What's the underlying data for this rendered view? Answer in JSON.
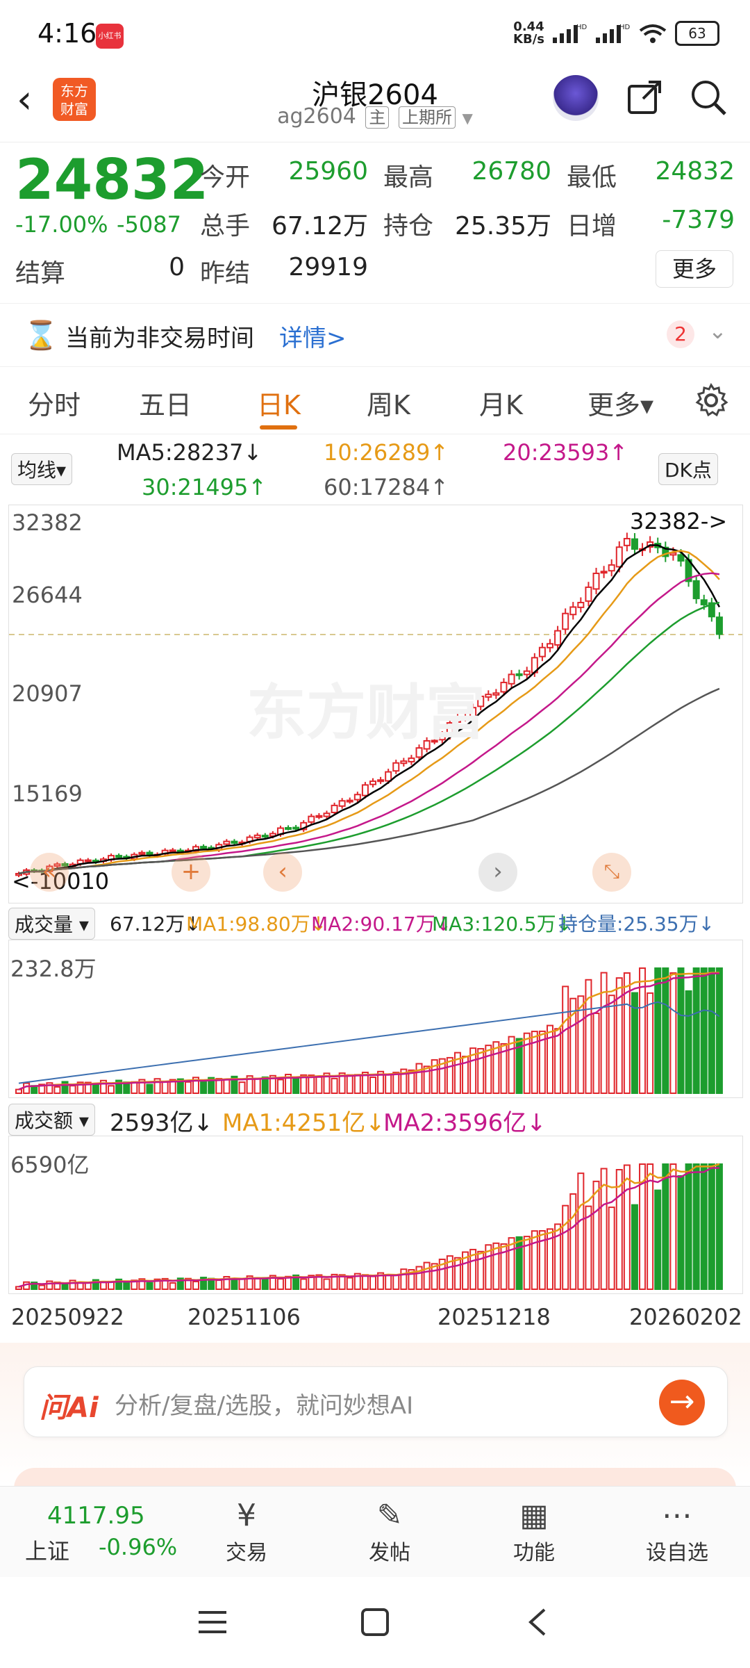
{
  "status_bar": {
    "time": "4:16",
    "app_badge": "小红书",
    "net_speed_top": "0.44",
    "net_speed_unit": "KB/s",
    "battery": "63"
  },
  "header": {
    "title": "沪银2604",
    "code": "ag2604",
    "tag_main": "主",
    "tag_exchange": "上期所",
    "logo_line1": "东方",
    "logo_line2": "财富"
  },
  "quote": {
    "price": "24832",
    "change_pct": "-17.00%",
    "change": "-5087",
    "rows": [
      [
        {
          "label": "今开",
          "value": "25960",
          "color": "#1d9d2e"
        },
        {
          "label": "最高",
          "value": "26780",
          "color": "#1d9d2e"
        },
        {
          "label": "最低",
          "value": "24832",
          "color": "#1d9d2e"
        }
      ],
      [
        {
          "label": "总手",
          "value": "67.12万",
          "color": "#222222"
        },
        {
          "label": "持仓",
          "value": "25.35万",
          "color": "#222222"
        },
        {
          "label": "日增",
          "value": "-7379",
          "color": "#1d9d2e"
        }
      ]
    ],
    "settle_label": "结算",
    "settle_value": "0",
    "prev_settle_label": "昨结",
    "prev_settle_value": "29919",
    "more_label": "更多"
  },
  "notice": {
    "text": "当前为非交易时间",
    "link": "详情>",
    "badge": "2"
  },
  "tabs": [
    "分时",
    "五日",
    "日K",
    "周K",
    "月K",
    "更多▾"
  ],
  "ma_bar": {
    "selector": "均线▾",
    "dk": "DK点",
    "ma5": "MA5:28237↓",
    "ma10": "10:26289↑",
    "ma20": "20:23593↑",
    "ma30": "30:21495↑",
    "ma60": "60:17284↑"
  },
  "chart_labels": {
    "price_ticks": [
      "32382",
      "26644",
      "20907",
      "15169"
    ],
    "high_marker": "32382->",
    "low_marker": "<-10010",
    "watermark": "东方财富",
    "vol_selector": "成交量 ▾",
    "vol_current": "67.12万↓",
    "vol_ma1": "MA1:98.80万↓",
    "vol_ma2": "MA2:90.17万↓",
    "vol_ma3": "MA3:120.5万↓",
    "vol_oi": "持仓量:25.35万↓",
    "vol_max": "232.8万",
    "amt_selector": "成交额 ▾",
    "amt_current": "2593亿↓",
    "amt_ma1": "MA1:4251亿↓",
    "amt_ma2": "MA2:3596亿↓",
    "amt_max": "6590亿",
    "dates": [
      "20250922",
      "20251106",
      "20251218",
      "20260202"
    ]
  },
  "colors": {
    "up": "#e0262c",
    "down": "#1d9d2e",
    "accent": "#e07010",
    "ma5": "#000000",
    "ma10": "#e69a17",
    "ma20": "#c4188a",
    "ma30": "#1d9d2e",
    "ma60": "#555555",
    "oi": "#3c6fb0"
  },
  "chart_data": {
    "type": "candlestick",
    "approx": true,
    "ylim": [
      10010,
      32382
    ],
    "last_close": 24832,
    "trend_anchor_closes": [
      10010,
      10600,
      11000,
      11300,
      11600,
      12200,
      13000,
      14500,
      16500,
      18600,
      21000,
      23000,
      27000,
      30500,
      29919,
      24832
    ],
    "volume_max": "232.8万",
    "amount_max": "6590亿"
  },
  "ai_bar": {
    "logo": "问Ai",
    "placeholder": "分析/复盘/选股，就问妙想AI"
  },
  "bottom_nav": {
    "index_value": "4117.95",
    "index_name": "上证",
    "index_change": "-0.96%",
    "items": [
      {
        "label": "交易",
        "icon": "yen-icon"
      },
      {
        "label": "发帖",
        "icon": "edit-icon"
      },
      {
        "label": "功能",
        "icon": "grid-icon"
      },
      {
        "label": "设自选",
        "icon": "more-icon"
      }
    ]
  }
}
